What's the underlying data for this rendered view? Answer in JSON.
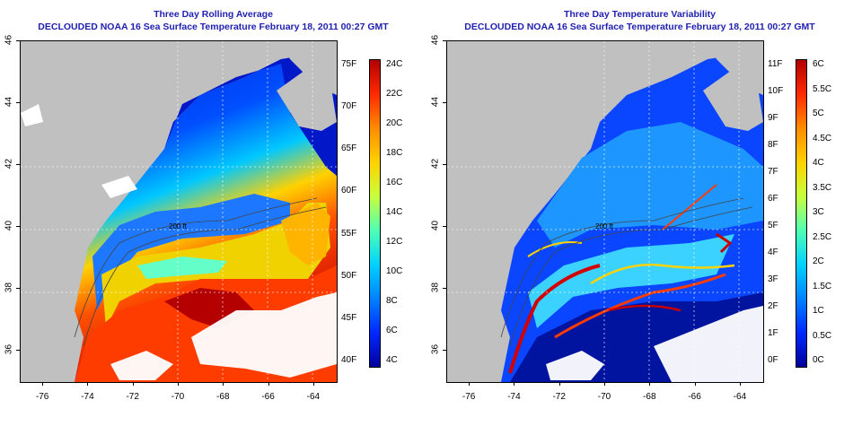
{
  "left_panel": {
    "title": "Three Day Rolling Average",
    "subtitle": "DECLOUDED NOAA 16 Sea Surface Temperature February 18, 2011 00:27 GMT",
    "colorbar": {
      "fahrenheit_labels": [
        "75F",
        "70F",
        "65F",
        "60F",
        "55F",
        "50F",
        "45F",
        "40F"
      ],
      "celsius_labels": [
        "24C",
        "22C",
        "20C",
        "18C",
        "16C",
        "14C",
        "12C",
        "10C",
        "8C",
        "6C",
        "4C"
      ],
      "colors": [
        "#b20000",
        "#ff2a00",
        "#ff8c00",
        "#ffd200",
        "#c8ff3c",
        "#50ffb4",
        "#00d2ff",
        "#0082ff",
        "#0028ff",
        "#00009b"
      ]
    },
    "contour_label": "200 ft"
  },
  "right_panel": {
    "title": "Three Day Temperature Variability",
    "subtitle": "DECLOUDED NOAA 16 Sea Surface Temperature February 18, 2011 00:27 GMT",
    "colorbar": {
      "fahrenheit_labels": [
        "11F",
        "10F",
        "9F",
        "8F",
        "7F",
        "6F",
        "5F",
        "4F",
        "3F",
        "2F",
        "1F",
        "0F"
      ],
      "celsius_labels": [
        "6C",
        "5.5C",
        "5C",
        "4.5C",
        "4C",
        "3.5C",
        "3C",
        "2.5C",
        "2C",
        "1.5C",
        "1C",
        "0.5C",
        "0C"
      ],
      "colors": [
        "#b20000",
        "#ff2a00",
        "#ff8c00",
        "#ffd200",
        "#c8ff3c",
        "#50ffb4",
        "#00d2ff",
        "#0082ff",
        "#0028ff",
        "#00009b"
      ]
    },
    "contour_label": "200 ft"
  },
  "axes": {
    "longitude_labels": [
      "-76",
      "-74",
      "-72",
      "-70",
      "-68",
      "-66",
      "-64"
    ],
    "latitude_labels": [
      "36",
      "38",
      "40",
      "42",
      "44",
      "46"
    ]
  },
  "map_colors": {
    "land": "#c0c0c0",
    "cloud": "#ffffff"
  }
}
